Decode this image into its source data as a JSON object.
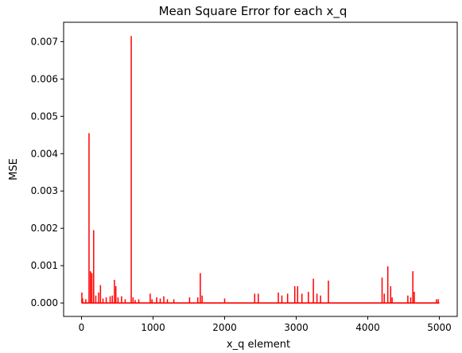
{
  "chart_data": {
    "type": "line",
    "title": "Mean Square Error for each x_q",
    "xlabel": "x_q element",
    "ylabel": "MSE",
    "xlim": [
      -250,
      5250
    ],
    "ylim": [
      -0.00036,
      0.00752
    ],
    "xticks": [
      0,
      1000,
      2000,
      3000,
      4000,
      5000
    ],
    "xtick_labels": [
      "0",
      "1000",
      "2000",
      "3000",
      "4000",
      "5000"
    ],
    "yticks": [
      0,
      0.001,
      0.002,
      0.003,
      0.004,
      0.005,
      0.006,
      0.007
    ],
    "ytick_labels": [
      "0.000",
      "0.001",
      "0.002",
      "0.003",
      "0.004",
      "0.005",
      "0.006",
      "0.007"
    ],
    "grid": false,
    "series": [
      {
        "color": "#ff0000",
        "x_range": [
          0,
          5000
        ],
        "baseline": 0.0,
        "peaks": [
          [
            5,
            0.00028
          ],
          [
            15,
            0.00012
          ],
          [
            60,
            0.0001
          ],
          [
            105,
            0.00455
          ],
          [
            125,
            0.00085
          ],
          [
            145,
            0.0008
          ],
          [
            170,
            0.00195
          ],
          [
            200,
            0.0002
          ],
          [
            240,
            0.00028
          ],
          [
            265,
            0.00048
          ],
          [
            300,
            0.00012
          ],
          [
            345,
            0.00015
          ],
          [
            400,
            0.00018
          ],
          [
            430,
            0.0002
          ],
          [
            460,
            0.00062
          ],
          [
            480,
            0.00045
          ],
          [
            510,
            0.00015
          ],
          [
            560,
            0.00018
          ],
          [
            610,
            0.0001
          ],
          [
            695,
            0.00715
          ],
          [
            720,
            0.00015
          ],
          [
            750,
            8e-05
          ],
          [
            800,
            0.0001
          ],
          [
            960,
            0.00025
          ],
          [
            985,
            0.0001
          ],
          [
            1050,
            0.00015
          ],
          [
            1100,
            0.00012
          ],
          [
            1150,
            0.00018
          ],
          [
            1200,
            0.0001
          ],
          [
            1290,
            0.0001
          ],
          [
            1510,
            0.00015
          ],
          [
            1625,
            0.00015
          ],
          [
            1660,
            0.0008
          ],
          [
            1685,
            0.0002
          ],
          [
            2000,
            0.00012
          ],
          [
            2420,
            0.00025
          ],
          [
            2470,
            0.00025
          ],
          [
            2750,
            0.00028
          ],
          [
            2800,
            0.0002
          ],
          [
            2880,
            0.00025
          ],
          [
            2980,
            0.00045
          ],
          [
            3020,
            0.00045
          ],
          [
            3080,
            0.00025
          ],
          [
            3170,
            0.0003
          ],
          [
            3240,
            0.00065
          ],
          [
            3290,
            0.00025
          ],
          [
            3340,
            0.0002
          ],
          [
            3450,
            0.0006
          ],
          [
            4200,
            0.00068
          ],
          [
            4230,
            0.00025
          ],
          [
            4280,
            0.00098
          ],
          [
            4320,
            0.00045
          ],
          [
            4340,
            0.00015
          ],
          [
            4560,
            0.0002
          ],
          [
            4600,
            0.00015
          ],
          [
            4630,
            0.00085
          ],
          [
            4650,
            0.0003
          ],
          [
            4960,
            0.0001
          ],
          [
            4985,
            0.0001
          ]
        ]
      }
    ]
  }
}
